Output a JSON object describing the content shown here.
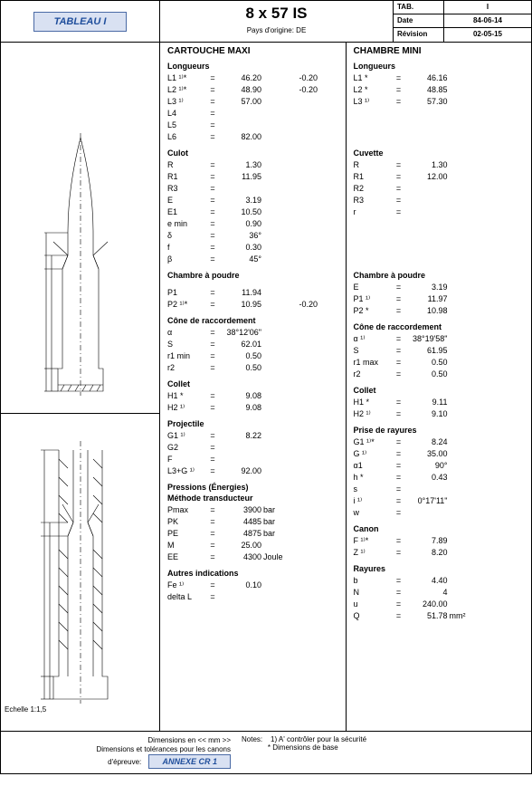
{
  "header": {
    "tableau_label": "TABLEAU I",
    "title": "8 x 57 IS",
    "origin_label": "Pays d'origine: DE",
    "meta": {
      "tab_label": "TAB.",
      "tab_value": "I",
      "date_label": "Date",
      "date_value": "84-06-14",
      "rev_label": "Révision",
      "rev_value": "02-05-15"
    }
  },
  "echelle": "Echelle 1:1,5",
  "cartouche": {
    "title": "CARTOUCHE MAXI",
    "longueurs": {
      "h": "Longueurs",
      "rows": [
        {
          "lbl": "L1 ¹⁾*",
          "val": "46.20",
          "delta": "-0.20"
        },
        {
          "lbl": "L2 ¹⁾*",
          "val": "48.90",
          "delta": "-0.20"
        },
        {
          "lbl": "L3 ¹⁾",
          "val": "57.00"
        },
        {
          "lbl": "L4",
          "val": ""
        },
        {
          "lbl": "L5",
          "val": ""
        },
        {
          "lbl": "L6",
          "val": "82.00"
        }
      ]
    },
    "culot": {
      "h": "Culot",
      "rows": [
        {
          "lbl": "R",
          "val": "1.30"
        },
        {
          "lbl": "R1",
          "val": "11.95"
        },
        {
          "lbl": "R3",
          "val": ""
        },
        {
          "lbl": "E",
          "val": "3.19"
        },
        {
          "lbl": "E1",
          "val": "10.50"
        },
        {
          "lbl": "e min",
          "val": "0.90"
        },
        {
          "lbl": "δ",
          "val": "36°"
        },
        {
          "lbl": "f",
          "val": "0.30"
        },
        {
          "lbl": "β",
          "val": "45°"
        }
      ]
    },
    "chambre": {
      "h": "Chambre à poudre",
      "rows": [
        {
          "lbl": "P1",
          "val": "11.94"
        },
        {
          "lbl": "P2 ¹⁾*",
          "val": "10.95",
          "delta": "-0.20"
        }
      ]
    },
    "cone": {
      "h": "Cône de raccordement",
      "rows": [
        {
          "lbl": "α",
          "val": "38°12'06\""
        },
        {
          "lbl": "S",
          "val": "62.01"
        },
        {
          "lbl": "r1 min",
          "val": "0.50"
        },
        {
          "lbl": "r2",
          "val": "0.50"
        }
      ]
    },
    "collet": {
      "h": "Collet",
      "rows": [
        {
          "lbl": "H1 *",
          "val": "9.08"
        },
        {
          "lbl": "H2 ¹⁾",
          "val": "9.08"
        }
      ]
    },
    "projectile": {
      "h": "Projectile",
      "rows": [
        {
          "lbl": "G1 ¹⁾",
          "val": "8.22"
        },
        {
          "lbl": "G2",
          "val": ""
        },
        {
          "lbl": "F",
          "val": ""
        },
        {
          "lbl": "L3+G ¹⁾",
          "val": "92.00"
        }
      ]
    },
    "pressions": {
      "h1": "Pressions (Énergies)",
      "h2": "Méthode transducteur",
      "rows": [
        {
          "lbl": "Pmax",
          "val": "3900",
          "unit": "bar"
        },
        {
          "lbl": "PK",
          "val": "4485",
          "unit": "bar"
        },
        {
          "lbl": "PE",
          "val": "4875",
          "unit": "bar"
        },
        {
          "lbl": "M",
          "val": "25.00"
        },
        {
          "lbl": "EE",
          "val": "4300",
          "unit": "Joule"
        }
      ]
    },
    "autres": {
      "h": "Autres indications",
      "rows": [
        {
          "lbl": "Fe ¹⁾",
          "val": "0.10"
        },
        {
          "lbl": "delta L",
          "val": ""
        }
      ]
    }
  },
  "chambre_mini": {
    "title": "CHAMBRE MINI",
    "longueurs": {
      "h": "Longueurs",
      "rows": [
        {
          "lbl": "L1 *",
          "val": "46.16"
        },
        {
          "lbl": "L2 *",
          "val": "48.85"
        },
        {
          "lbl": "L3 ¹⁾",
          "val": "57.30"
        }
      ]
    },
    "cuvette": {
      "h": "Cuvette",
      "rows": [
        {
          "lbl": "R",
          "val": "1.30"
        },
        {
          "lbl": "R1",
          "val": "12.00"
        },
        {
          "lbl": "R2",
          "val": ""
        },
        {
          "lbl": "R3",
          "val": ""
        },
        {
          "lbl": "r",
          "val": ""
        }
      ]
    },
    "chambre": {
      "h": "Chambre à poudre",
      "rows": [
        {
          "lbl": "E",
          "val": "3.19"
        },
        {
          "lbl": "P1 ¹⁾",
          "val": "11.97"
        },
        {
          "lbl": "P2 *",
          "val": "10.98"
        }
      ]
    },
    "cone": {
      "h": "Cône de raccordement",
      "rows": [
        {
          "lbl": "α ¹⁾",
          "val": "38°19'58\""
        },
        {
          "lbl": "S",
          "val": "61.95"
        },
        {
          "lbl": "r1 max",
          "val": "0.50"
        },
        {
          "lbl": "r2",
          "val": "0.50"
        }
      ]
    },
    "collet": {
      "h": "Collet",
      "rows": [
        {
          "lbl": "H1 *",
          "val": "9.11"
        },
        {
          "lbl": "H2 ¹⁾",
          "val": "9.10"
        }
      ]
    },
    "prise": {
      "h": "Prise de rayures",
      "rows": [
        {
          "lbl": "G1 ¹⁾*",
          "val": "8.24"
        },
        {
          "lbl": "G ¹⁾",
          "val": "35.00"
        },
        {
          "lbl": "α1",
          "val": "90°"
        },
        {
          "lbl": "h *",
          "val": "0.43"
        },
        {
          "lbl": "s",
          "val": ""
        },
        {
          "lbl": "i ¹⁾",
          "val": "0°17'11\""
        },
        {
          "lbl": "w",
          "val": ""
        }
      ]
    },
    "canon": {
      "h": "Canon",
      "rows": [
        {
          "lbl": "F ¹⁾*",
          "val": "7.89"
        },
        {
          "lbl": "Z ¹⁾",
          "val": "8.20"
        }
      ]
    },
    "rayures": {
      "h": "Rayures",
      "rows": [
        {
          "lbl": "b",
          "val": "4.40"
        },
        {
          "lbl": "N",
          "val": "4"
        },
        {
          "lbl": "u",
          "val": "240.00"
        },
        {
          "lbl": "Q",
          "val": "51.78",
          "unit": "mm²"
        }
      ]
    }
  },
  "footer": {
    "dim_mm": "Dimensions en << mm >>",
    "dim_tol": "Dimensions et tolérances pour les canons",
    "depreuve": "d'épreuve:",
    "annexe": "ANNEXE CR 1",
    "notes_label": "Notes:",
    "note1": "1) A' contrôler pour la sécurité",
    "note2": "*  Dimensions de base"
  }
}
